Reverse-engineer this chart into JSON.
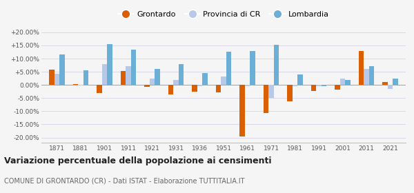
{
  "years": [
    1871,
    1881,
    1901,
    1911,
    1921,
    1931,
    1936,
    1951,
    1961,
    1971,
    1981,
    1991,
    2001,
    2011,
    2021
  ],
  "grontardo": [
    5.8,
    0.3,
    -3.0,
    5.3,
    -0.8,
    -3.5,
    -2.5,
    -2.8,
    -19.5,
    -10.8,
    -6.2,
    -2.2,
    -1.8,
    12.8,
    1.2
  ],
  "provincia_cr": [
    4.2,
    -0.2,
    8.0,
    7.2,
    2.5,
    1.8,
    -0.5,
    3.3,
    -0.5,
    -4.8,
    -0.5,
    -0.5,
    2.5,
    6.2,
    -1.5
  ],
  "lombardia": [
    11.5,
    5.5,
    15.5,
    13.3,
    6.0,
    7.8,
    4.4,
    12.5,
    12.8,
    15.3,
    4.1,
    -0.5,
    1.8,
    7.2,
    2.5
  ],
  "color_grontardo": "#d95f02",
  "color_provincia": "#b8c9e8",
  "color_lombardia": "#6baed6",
  "ylim": [
    -22,
    22
  ],
  "yticks": [
    -20,
    -15,
    -10,
    -5,
    0,
    5,
    10,
    15,
    20
  ],
  "ytick_labels": [
    "-20.00%",
    "-15.00%",
    "-10.00%",
    "-5.00%",
    "0.00%",
    "+5.00%",
    "+10.00%",
    "+15.00%",
    "+20.00%"
  ],
  "title": "Variazione percentuale della popolazione ai censimenti",
  "subtitle": "COMUNE DI GRONTARDO (CR) - Dati ISTAT - Elaborazione TUTTITALIA.IT",
  "legend_labels": [
    "Grontardo",
    "Provincia di CR",
    "Lombardia"
  ],
  "background_color": "#f5f5f5",
  "grid_color": "#d8d8e8"
}
